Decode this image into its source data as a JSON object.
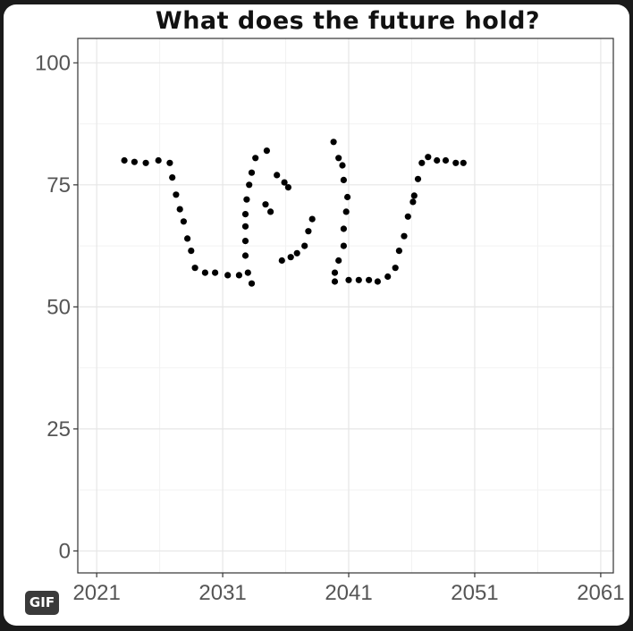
{
  "badge": "GIF",
  "chart_data": {
    "type": "scatter",
    "title": "What does the future hold?",
    "xlabel": "",
    "ylabel": "",
    "xlim": [
      2019.5,
      2062
    ],
    "ylim": [
      -4.5,
      105
    ],
    "xticks": [
      2021,
      2031,
      2041,
      2051,
      2061
    ],
    "yticks": [
      0,
      25,
      50,
      75,
      100
    ],
    "grid": true,
    "legend": "none",
    "point_color": "#000000",
    "series": [
      {
        "points": [
          [
            2023.2,
            80
          ],
          [
            2024.0,
            79.7
          ],
          [
            2024.9,
            79.5
          ],
          [
            2025.9,
            80
          ],
          [
            2026.8,
            79.5
          ],
          [
            2027.0,
            76.5
          ],
          [
            2027.3,
            73
          ],
          [
            2027.6,
            70
          ],
          [
            2027.9,
            67.5
          ],
          [
            2028.2,
            64
          ],
          [
            2028.5,
            61.5
          ],
          [
            2028.8,
            58
          ],
          [
            2029.6,
            57
          ],
          [
            2030.4,
            57
          ],
          [
            2031.4,
            56.5
          ],
          [
            2032.3,
            56.5
          ],
          [
            2033.3,
            54.8
          ],
          [
            2033.0,
            57
          ],
          [
            2032.8,
            60.5
          ],
          [
            2032.8,
            63.5
          ],
          [
            2032.8,
            66.5
          ],
          [
            2032.8,
            69
          ],
          [
            2032.9,
            72
          ],
          [
            2033.1,
            75
          ],
          [
            2033.3,
            77.5
          ],
          [
            2033.6,
            80.5
          ],
          [
            2034.5,
            82
          ],
          [
            2034.4,
            71
          ],
          [
            2034.8,
            69.5
          ],
          [
            2035.3,
            77
          ],
          [
            2035.9,
            75.5
          ],
          [
            2036.2,
            74.5
          ],
          [
            2035.7,
            59.5
          ],
          [
            2036.4,
            60.2
          ],
          [
            2036.9,
            61
          ],
          [
            2037.5,
            62.5
          ],
          [
            2037.8,
            65.5
          ],
          [
            2038.1,
            68
          ],
          [
            2039.8,
            83.8
          ],
          [
            2040.2,
            80.5
          ],
          [
            2040.5,
            79
          ],
          [
            2040.6,
            76
          ],
          [
            2040.9,
            72.5
          ],
          [
            2040.8,
            69.5
          ],
          [
            2040.6,
            66
          ],
          [
            2040.6,
            62.5
          ],
          [
            2040.2,
            59.5
          ],
          [
            2039.9,
            57
          ],
          [
            2039.9,
            55.2
          ],
          [
            2041.0,
            55.5
          ],
          [
            2041.8,
            55.5
          ],
          [
            2042.6,
            55.5
          ],
          [
            2043.3,
            55.2
          ],
          [
            2044.1,
            56.2
          ],
          [
            2044.7,
            58
          ],
          [
            2045.0,
            61.5
          ],
          [
            2045.4,
            64.5
          ],
          [
            2045.7,
            68.5
          ],
          [
            2046.1,
            71.5
          ],
          [
            2046.2,
            72.8
          ],
          [
            2046.5,
            76.2
          ],
          [
            2046.8,
            79.5
          ],
          [
            2047.3,
            80.7
          ],
          [
            2048.0,
            80
          ],
          [
            2048.7,
            80
          ],
          [
            2049.5,
            79.5
          ],
          [
            2050.1,
            79.5
          ]
        ]
      }
    ]
  }
}
